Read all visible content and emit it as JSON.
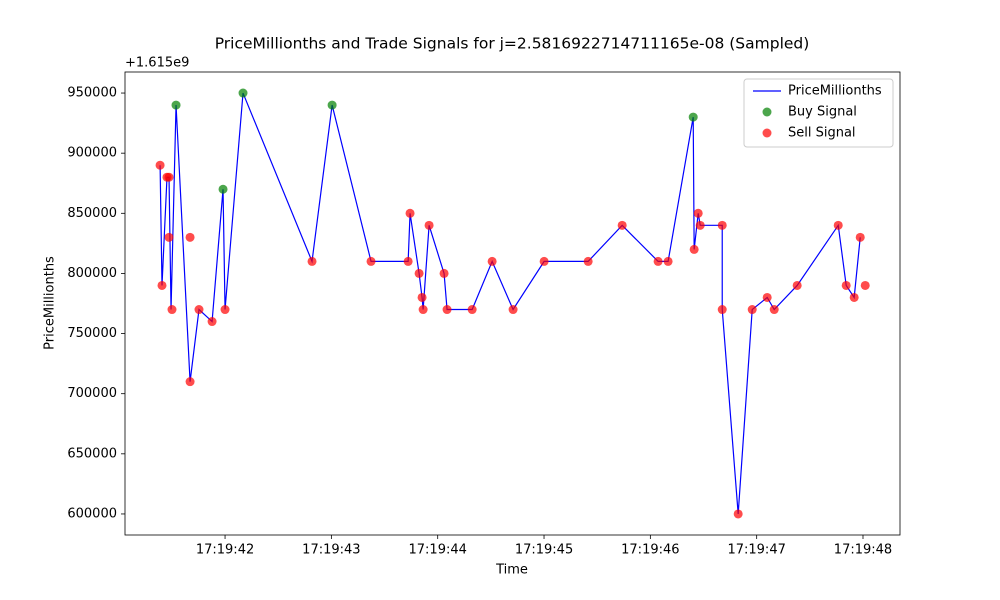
{
  "chart_data": {
    "type": "line",
    "title": "PriceMillionths and Trade Signals for j=2.5816922714711165e-08 (Sampled)",
    "x_label": "Time",
    "y_label": "PriceMillionths",
    "y_offset_label": "+1.615e9",
    "xlim": [
      "17:19:41.059",
      "17:19:48.348"
    ],
    "xticks": [
      "17:19:42",
      "17:19:43",
      "17:19:44",
      "17:19:45",
      "17:19:46",
      "17:19:47",
      "17:19:48"
    ],
    "ylim": [
      582500,
      967500
    ],
    "yticks": [
      600000,
      650000,
      700000,
      750000,
      800000,
      850000,
      900000,
      950000
    ],
    "grid": false,
    "legend": "upper right",
    "series": [
      {
        "name": "PriceMillionths",
        "kind": "line",
        "color": "#0000ff",
        "x": [
          "17:19:41.389",
          "17:19:41.407",
          "17:19:41.454",
          "17:19:41.473",
          "17:19:41.492",
          "17:19:41.539",
          "17:19:41.671",
          "17:19:41.755",
          "17:19:41.878",
          "17:19:41.981",
          "17:19:42.000",
          "17:19:42.169",
          "17:19:42.818",
          "17:19:43.007",
          "17:19:43.373",
          "17:19:43.722",
          "17:19:43.740",
          "17:19:43.825",
          "17:19:43.853",
          "17:19:43.863",
          "17:19:43.919",
          "17:19:44.060",
          "17:19:44.088",
          "17:19:44.324",
          "17:19:44.512",
          "17:19:44.709",
          "17:19:45.001",
          "17:19:45.415",
          "17:19:45.735",
          "17:19:46.073",
          "17:19:46.167",
          "17:19:46.403",
          "17:19:46.412",
          "17:19:46.450",
          "17:19:46.469",
          "17:19:46.676",
          "17:19:46.676",
          "17:19:46.826",
          "17:19:46.958",
          "17:19:47.099",
          "17:19:47.165",
          "17:19:47.381",
          "17:19:47.767",
          "17:19:47.842",
          "17:19:47.917",
          "17:19:47.974"
        ],
        "values": [
          890000,
          790000,
          880000,
          880000,
          770000,
          940000,
          710000,
          770000,
          760000,
          870000,
          770000,
          950000,
          810000,
          940000,
          810000,
          810000,
          850000,
          800000,
          780000,
          770000,
          840000,
          800000,
          770000,
          770000,
          810000,
          770000,
          810000,
          810000,
          840000,
          810000,
          810000,
          930000,
          820000,
          850000,
          840000,
          840000,
          770000,
          600000,
          770000,
          780000,
          770000,
          790000,
          840000,
          790000,
          780000,
          830000
        ]
      },
      {
        "name": "Buy Signal",
        "kind": "scatter",
        "color": "#008000",
        "x": [
          "17:19:41.539",
          "17:19:41.981",
          "17:19:42.169",
          "17:19:43.007",
          "17:19:46.403"
        ],
        "values": [
          940000,
          870000,
          950000,
          940000,
          930000
        ]
      },
      {
        "name": "Sell Signal",
        "kind": "scatter",
        "color": "#ff0000",
        "x": [
          "17:19:41.389",
          "17:19:41.407",
          "17:19:41.454",
          "17:19:41.473",
          "17:19:41.473",
          "17:19:41.501",
          "17:19:41.671",
          "17:19:41.671",
          "17:19:41.755",
          "17:19:41.878",
          "17:19:42.000",
          "17:19:42.818",
          "17:19:43.373",
          "17:19:43.722",
          "17:19:43.740",
          "17:19:43.825",
          "17:19:43.853",
          "17:19:43.863",
          "17:19:43.919",
          "17:19:44.060",
          "17:19:44.088",
          "17:19:44.324",
          "17:19:44.512",
          "17:19:44.709",
          "17:19:45.001",
          "17:19:45.415",
          "17:19:45.735",
          "17:19:46.073",
          "17:19:46.167",
          "17:19:46.412",
          "17:19:46.450",
          "17:19:46.469",
          "17:19:46.676",
          "17:19:46.676",
          "17:19:46.826",
          "17:19:46.958",
          "17:19:47.099",
          "17:19:47.165",
          "17:19:47.381",
          "17:19:47.767",
          "17:19:47.842",
          "17:19:47.917",
          "17:19:47.974",
          "17:19:48.021"
        ],
        "values": [
          890000,
          790000,
          880000,
          880000,
          830000,
          770000,
          830000,
          710000,
          770000,
          760000,
          770000,
          810000,
          810000,
          810000,
          850000,
          800000,
          780000,
          770000,
          840000,
          800000,
          770000,
          770000,
          810000,
          770000,
          810000,
          810000,
          840000,
          810000,
          810000,
          820000,
          850000,
          840000,
          840000,
          770000,
          600000,
          770000,
          780000,
          770000,
          790000,
          840000,
          790000,
          780000,
          830000,
          790000
        ]
      }
    ]
  }
}
